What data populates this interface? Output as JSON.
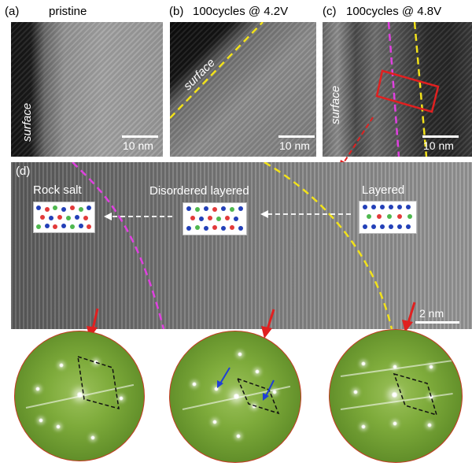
{
  "panels": {
    "a": {
      "label": "(a)",
      "title": "pristine",
      "surface": "surface",
      "scale": "10 nm"
    },
    "b": {
      "label": "(b)",
      "title": "100cycles @ 4.2V",
      "surface": "surface",
      "scale": "10 nm"
    },
    "c": {
      "label": "(c)",
      "title": "100cycles @ 4.8V",
      "surface": "surface",
      "scale": "10 nm"
    },
    "d": {
      "label": "(d)",
      "regions": [
        "Rock salt",
        "Disordered layered",
        "Layered"
      ],
      "scale": "2 nm"
    }
  },
  "colors": {
    "magenta_boundary": "#e040e0",
    "yellow_boundary": "#f2e21a",
    "red_marker": "#e02020",
    "fft_green": "#7eab3b",
    "blue_arrow": "#1f3fd6",
    "atom_blue": "#2340b8",
    "atom_green": "#4fb84f",
    "atom_red": "#e23a3a"
  }
}
